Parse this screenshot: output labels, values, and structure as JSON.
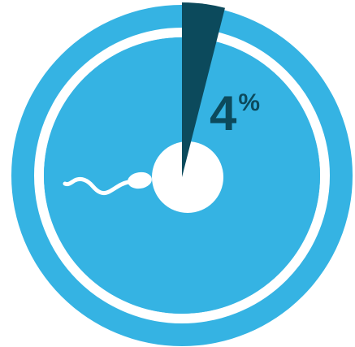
{
  "colors": {
    "background": "#ffffff",
    "outer_disc": "#35b3e3",
    "ring": "#ffffff",
    "inner_disc": "#35b3e3",
    "wedge": "#0c4a5c",
    "egg": "#ffffff",
    "sperm": "#ffffff",
    "label": "#0c4a5c"
  },
  "indicator": {
    "value": "4",
    "unit": "%",
    "fraction": 0.04
  },
  "icons": {
    "egg": "egg-cell-icon",
    "sperm": "sperm-cell-icon"
  }
}
